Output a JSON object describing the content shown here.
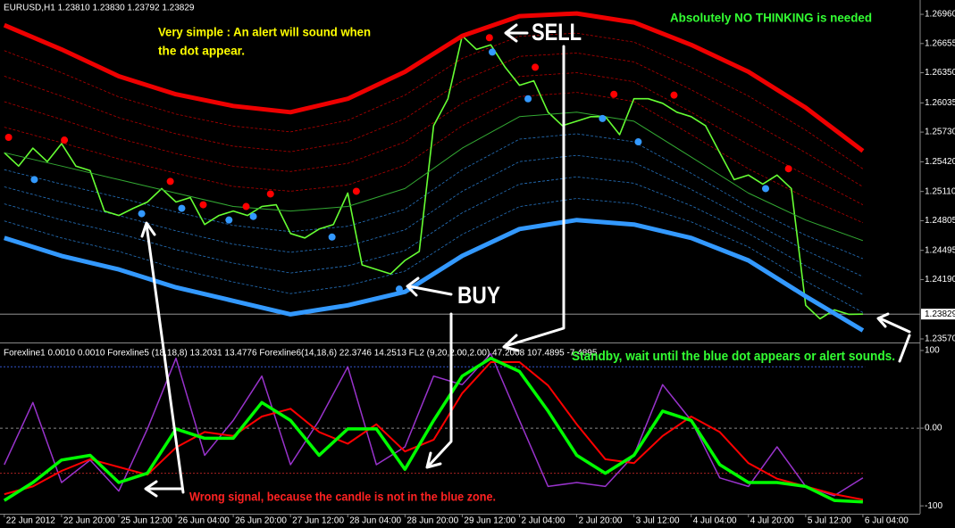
{
  "chart_data": [
    {
      "type": "line",
      "title": "EURUSD,H1  1.23810 1.23830 1.23792 1.23829",
      "xlim": [
        -0.3,
        64
      ],
      "ylim": [
        1.23542,
        1.27091
      ],
      "yticks": [
        {
          "value": 1.2696,
          "label": "1.26960"
        },
        1.26655,
        {
          "value": 1.2635,
          "label": "1.26350"
        },
        1.26035,
        {
          "value": 1.2573,
          "label": "1.25730"
        },
        {
          "value": 1.2542,
          "label": "1.25420"
        },
        {
          "value": 1.2511,
          "label": "1.25110"
        },
        1.24805,
        1.24495,
        {
          "value": 1.2419,
          "label": "1.24190"
        },
        {
          "value": 1.2357,
          "label": "1.23570"
        }
      ],
      "current_price": 1.23829,
      "series": [
        {
          "style": "line",
          "color": "#66ff33",
          "x": [
            0,
            1,
            2,
            3,
            4,
            5,
            6,
            7,
            8,
            9,
            10,
            11,
            12,
            13,
            14,
            15,
            16,
            17,
            18,
            19,
            20,
            21,
            22,
            23,
            24,
            25,
            26,
            27,
            28,
            29,
            30,
            31,
            32,
            33,
            34,
            35,
            36,
            37,
            38,
            39,
            40,
            41,
            42,
            43,
            44,
            45,
            46,
            47,
            48,
            49,
            50,
            51,
            52,
            53,
            54,
            55,
            56,
            57,
            58,
            59,
            60
          ],
          "values": [
            1.25515,
            1.25375,
            1.25562,
            1.25422,
            1.25609,
            1.25375,
            1.25328,
            1.24906,
            1.24859,
            1.24934,
            1.25,
            1.2514,
            1.25,
            1.25046,
            1.24765,
            1.24859,
            1.24906,
            1.24859,
            1.24953,
            1.24971,
            1.24671,
            1.24624,
            1.24718,
            1.24765,
            1.25093,
            1.24343,
            1.24296,
            1.24249,
            1.2439,
            1.24484,
            1.25797,
            1.26078,
            1.26735,
            1.26594,
            1.26641,
            1.26407,
            1.26219,
            1.26266,
            1.25938,
            1.25797,
            1.25844,
            1.25891,
            1.25891,
            1.25703,
            1.26078,
            1.26078,
            1.26031,
            1.25938,
            1.25891,
            1.25797,
            1.25515,
            1.25234,
            1.25281,
            1.25187,
            1.25281,
            1.2514,
            1.23921,
            1.2378,
            1.23874,
            1.23827,
            1.23829
          ]
        },
        {
          "style": "band",
          "color": "#ee0000",
          "x": [
            0,
            4,
            8,
            12,
            16,
            20,
            24,
            28,
            32,
            36,
            40,
            44,
            48,
            52,
            56,
            60
          ],
          "values": [
            1.26847,
            1.26594,
            1.26313,
            1.26125,
            1.26003,
            1.25938,
            1.26078,
            1.2636,
            1.26735,
            1.26941,
            1.26969,
            1.26876,
            1.26641,
            1.2636,
            1.25984,
            1.25534
          ]
        },
        {
          "style": "band",
          "color": "#3399ff",
          "x": [
            0,
            4,
            8,
            12,
            16,
            20,
            24,
            28,
            32,
            36,
            40,
            44,
            48,
            52,
            56,
            60
          ],
          "values": [
            1.24624,
            1.24437,
            1.24296,
            1.24108,
            1.23968,
            1.23827,
            1.23921,
            1.24062,
            1.24437,
            1.24718,
            1.24812,
            1.24765,
            1.24624,
            1.2439,
            1.24015,
            1.23658
          ]
        },
        {
          "style": "thin",
          "color": "#33aa33",
          "x": [
            0,
            4,
            8,
            12,
            16,
            20,
            24,
            28,
            32,
            36,
            40,
            44,
            48,
            52,
            56,
            60
          ],
          "values": [
            1.25515,
            1.25375,
            1.25234,
            1.25093,
            1.24953,
            1.24906,
            1.24953,
            1.2514,
            1.25562,
            1.25891,
            1.25938,
            1.25844,
            1.25469,
            1.25093,
            1.24812,
            1.24596
          ]
        },
        {
          "style": "dot",
          "color": "#ff0000",
          "x": [
            0.3,
            4.2,
            11.6,
            13.9,
            16.9,
            18.6,
            24.6,
            33.9,
            37.1,
            42.6,
            46.8,
            54.8
          ],
          "values": [
            1.25675,
            1.25647,
            1.25215,
            1.24971,
            1.24953,
            1.25084,
            1.25112,
            1.26716,
            1.26407,
            1.26125,
            1.26116,
            1.25347
          ]
        },
        {
          "style": "dot",
          "color": "#3399ff",
          "x": [
            2.1,
            9.6,
            12.4,
            15.7,
            17.4,
            22.9,
            27.6,
            34.1,
            36.6,
            41.8,
            44.3,
            53.2
          ],
          "values": [
            1.25234,
            1.24878,
            1.24934,
            1.24812,
            1.24849,
            1.24634,
            1.2409,
            1.26566,
            1.26078,
            1.25872,
            1.25628,
            1.2514
          ]
        }
      ],
      "annotations": [
        "Very simple : An alert will sound when",
        "the dot appear.",
        "Absolutely NO THINKING is needed",
        "SELL",
        "BUY",
        "Standby, wait until the blue dot appears or alert sounds.",
        "Wrong signal, because the candle is not in the blue zone."
      ]
    },
    {
      "type": "line",
      "title": "Forexline1 0.0010 0.0010  Forexline5 (18,18,8) 13.2031 13.4776  Forexline6(14,18,6) 22.3746 14.2513  FL2 (9,20,2.00,2.00) 47.2008 107.4895 -7.4895",
      "xlim": [
        -0.3,
        64
      ],
      "ylim": [
        -109,
        108
      ],
      "yticks": [
        100,
        {
          "value": 0,
          "label": "0.00"
        },
        -100
      ],
      "xticks": [
        {
          "value": 0,
          "label": "22 Jun 2012"
        },
        {
          "value": 4,
          "label": "22 Jun 20:00"
        },
        {
          "value": 8,
          "label": "25 Jun 12:00"
        },
        {
          "value": 12,
          "label": "26 Jun 04:00"
        },
        {
          "value": 16,
          "label": "26 Jun 20:00"
        },
        {
          "value": 20,
          "label": "27 Jun 12:00"
        },
        {
          "value": 24,
          "label": "28 Jun 04:00"
        },
        {
          "value": 28,
          "label": "28 Jun 20:00"
        },
        {
          "value": 32,
          "label": "29 Jun 12:00"
        },
        {
          "value": 36,
          "label": "2 Jul 04:00"
        },
        {
          "value": 40,
          "label": "2 Jul 20:00"
        },
        {
          "value": 44,
          "label": "3 Jul 12:00"
        },
        {
          "value": 48,
          "label": "4 Jul 04:00"
        },
        {
          "value": 52,
          "label": "4 Jul 20:00"
        },
        {
          "value": 56,
          "label": "5 Jul 12:00"
        },
        {
          "value": 60,
          "label": "6 Jul 04:00"
        }
      ],
      "levels": [
        {
          "value": 79,
          "color": "#3355cc"
        },
        {
          "value": -58,
          "color": "#aa2222"
        }
      ],
      "series": [
        {
          "color": "#9933cc",
          "width": 1.5,
          "x": [
            0,
            2,
            4,
            6,
            8,
            10,
            12,
            14,
            16,
            18,
            20,
            22,
            24,
            26,
            28,
            30,
            32,
            34,
            36,
            38,
            40,
            42,
            44,
            46,
            48,
            50,
            52,
            54,
            56,
            58,
            60
          ],
          "values": [
            -47,
            33,
            -70,
            -41,
            -81,
            -1,
            90,
            -35,
            10,
            67,
            -47,
            10,
            79,
            -47,
            -24,
            67,
            56,
            96,
            10,
            -75,
            -70,
            -75,
            -35,
            56,
            10,
            -64,
            -75,
            -24,
            -75,
            -87,
            -64
          ]
        },
        {
          "color": "#ff0000",
          "width": 2,
          "x": [
            0,
            2,
            4,
            6,
            8,
            10,
            12,
            14,
            16,
            18,
            20,
            22,
            24,
            26,
            28,
            30,
            32,
            34,
            36,
            38,
            40,
            42,
            44,
            46,
            48,
            50,
            52,
            54,
            56,
            58,
            60
          ],
          "values": [
            -85,
            -75,
            -55,
            -40,
            -50,
            -60,
            -25,
            -5,
            -10,
            15,
            25,
            -5,
            -20,
            5,
            -30,
            -15,
            45,
            85,
            85,
            55,
            5,
            -40,
            -45,
            -10,
            15,
            -5,
            -45,
            -65,
            -75,
            -85,
            -92
          ]
        },
        {
          "color": "#00ff00",
          "width": 3.5,
          "x": [
            0,
            2,
            4,
            6,
            8,
            10,
            12,
            14,
            16,
            18,
            20,
            22,
            24,
            26,
            28,
            30,
            32,
            34,
            36,
            38,
            40,
            42,
            44,
            46,
            48,
            50,
            52,
            54,
            56,
            58,
            60
          ],
          "values": [
            -93,
            -70,
            -41,
            -35,
            -70,
            -58,
            -1,
            -13,
            -13,
            33,
            10,
            -35,
            -1,
            -1,
            -53,
            10,
            67,
            90,
            73,
            22,
            -35,
            -58,
            -35,
            22,
            10,
            -47,
            -70,
            -70,
            -75,
            -93,
            -95
          ]
        }
      ]
    }
  ]
}
